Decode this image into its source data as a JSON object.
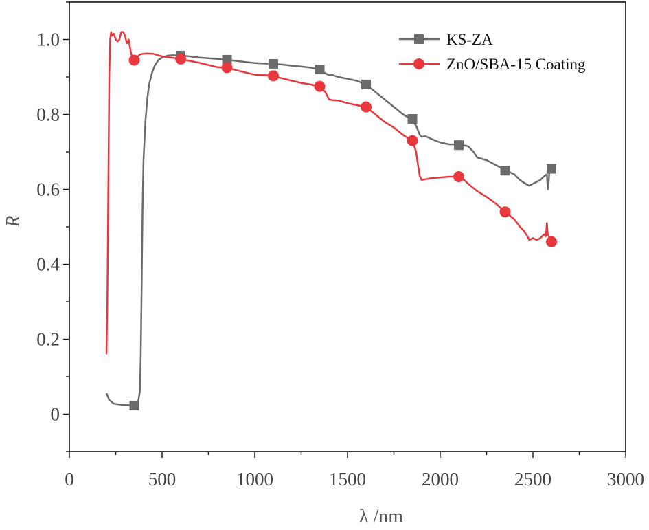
{
  "chart_data": {
    "type": "line",
    "xlabel": "λ /nm",
    "ylabel": "R",
    "xlim": [
      0,
      3000
    ],
    "ylim": [
      -0.1,
      1.1
    ],
    "xticks": [
      0,
      500,
      1000,
      1500,
      2000,
      2500,
      3000
    ],
    "xtick_labels": [
      "0",
      "500",
      "1000",
      "1500",
      "2000",
      "2500",
      "3000"
    ],
    "yticks": [
      0,
      0.2,
      0.4,
      0.6,
      0.8,
      1.0
    ],
    "ytick_labels": [
      "0",
      "0.2",
      "0.4",
      "0.6",
      "0.8",
      "1.0"
    ],
    "grid": false,
    "legend_position": "top-right",
    "series": [
      {
        "name": "KS-ZA",
        "color": "#6b6b6b",
        "marker": "square",
        "x": [
          200,
          215,
          240,
          280,
          330,
          350,
          370,
          380,
          385,
          390,
          395,
          400,
          410,
          420,
          430,
          445,
          460,
          480,
          500,
          530,
          560,
          600,
          650,
          700,
          750,
          800,
          850,
          900,
          950,
          1000,
          1050,
          1100,
          1150,
          1200,
          1250,
          1300,
          1350,
          1380,
          1400,
          1420,
          1450,
          1500,
          1550,
          1600,
          1650,
          1700,
          1750,
          1800,
          1850,
          1870,
          1890,
          1900,
          1920,
          1950,
          2000,
          2050,
          2100,
          2150,
          2180,
          2200,
          2250,
          2300,
          2350,
          2400,
          2430,
          2460,
          2480,
          2500,
          2520,
          2540,
          2560,
          2575,
          2580,
          2585,
          2590,
          2595,
          2600
        ],
        "y": [
          0.056,
          0.038,
          0.028,
          0.025,
          0.024,
          0.023,
          0.03,
          0.06,
          0.15,
          0.35,
          0.55,
          0.68,
          0.78,
          0.84,
          0.88,
          0.91,
          0.93,
          0.945,
          0.952,
          0.957,
          0.958,
          0.957,
          0.955,
          0.952,
          0.95,
          0.948,
          0.946,
          0.943,
          0.94,
          0.937,
          0.936,
          0.935,
          0.933,
          0.93,
          0.928,
          0.925,
          0.92,
          0.91,
          0.905,
          0.905,
          0.9,
          0.895,
          0.89,
          0.88,
          0.86,
          0.84,
          0.82,
          0.8,
          0.785,
          0.77,
          0.745,
          0.74,
          0.742,
          0.735,
          0.725,
          0.72,
          0.72,
          0.715,
          0.7,
          0.685,
          0.678,
          0.665,
          0.652,
          0.64,
          0.625,
          0.615,
          0.61,
          0.615,
          0.62,
          0.625,
          0.635,
          0.64,
          0.6,
          0.62,
          0.66,
          0.66,
          0.655
        ],
        "marker_x": [
          350,
          600,
          850,
          1100,
          1350,
          1600,
          1850,
          2100,
          2350,
          2600
        ],
        "marker_y": [
          0.023,
          0.957,
          0.946,
          0.935,
          0.92,
          0.88,
          0.788,
          0.718,
          0.65,
          0.655
        ]
      },
      {
        "name": "ZnO/SBA-15 Coating",
        "color": "#e8383d",
        "marker": "circle",
        "x": [
          200,
          205,
          210,
          215,
          220,
          225,
          230,
          240,
          250,
          260,
          270,
          280,
          290,
          300,
          310,
          320,
          330,
          340,
          350,
          360,
          380,
          400,
          420,
          450,
          480,
          500,
          550,
          600,
          650,
          700,
          750,
          800,
          850,
          900,
          950,
          1000,
          1050,
          1100,
          1150,
          1200,
          1250,
          1300,
          1350,
          1380,
          1400,
          1420,
          1450,
          1500,
          1550,
          1600,
          1650,
          1700,
          1750,
          1800,
          1850,
          1870,
          1880,
          1890,
          1900,
          1920,
          1950,
          2000,
          2050,
          2100,
          2130,
          2150,
          2200,
          2250,
          2300,
          2350,
          2400,
          2430,
          2450,
          2470,
          2480,
          2500,
          2520,
          2540,
          2560,
          2570,
          2575,
          2580,
          2590,
          2600
        ],
        "y": [
          0.16,
          0.3,
          0.6,
          0.9,
          1.0,
          1.02,
          1.01,
          1.015,
          1.0,
          0.995,
          1.0,
          1.02,
          1.02,
          1.01,
          0.99,
          1.0,
          0.97,
          0.95,
          0.945,
          0.95,
          0.96,
          0.962,
          0.963,
          0.962,
          0.958,
          0.955,
          0.952,
          0.948,
          0.943,
          0.938,
          0.932,
          0.926,
          0.925,
          0.918,
          0.912,
          0.906,
          0.905,
          0.903,
          0.896,
          0.89,
          0.884,
          0.88,
          0.875,
          0.86,
          0.84,
          0.838,
          0.837,
          0.83,
          0.825,
          0.82,
          0.8,
          0.78,
          0.765,
          0.745,
          0.73,
          0.7,
          0.665,
          0.635,
          0.625,
          0.627,
          0.63,
          0.632,
          0.634,
          0.634,
          0.625,
          0.615,
          0.595,
          0.58,
          0.562,
          0.54,
          0.52,
          0.5,
          0.49,
          0.475,
          0.465,
          0.47,
          0.465,
          0.47,
          0.48,
          0.475,
          0.51,
          0.48,
          0.47,
          0.46
        ],
        "marker_x": [
          350,
          600,
          850,
          1100,
          1350,
          1600,
          1850,
          2100,
          2350,
          2600
        ],
        "marker_y": [
          0.945,
          0.948,
          0.925,
          0.903,
          0.875,
          0.82,
          0.73,
          0.634,
          0.54,
          0.46
        ]
      }
    ]
  }
}
